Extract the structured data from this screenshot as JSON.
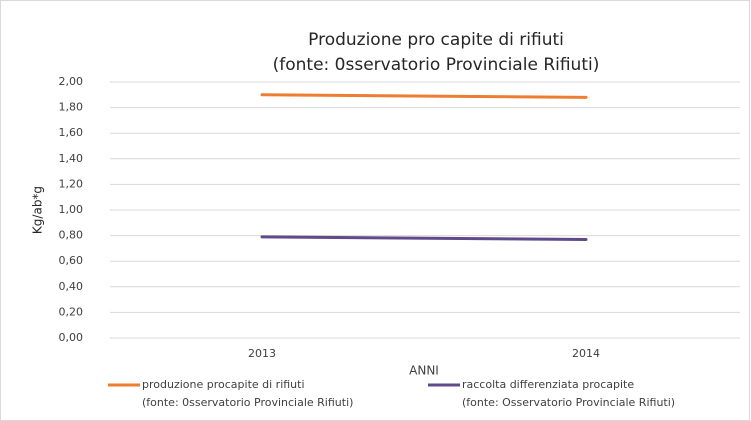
{
  "chart_data": {
    "type": "line",
    "title": "Produzione pro capite di rifiuti",
    "subtitle": "(fonte: 0sservatorio Provinciale Rifiuti)",
    "x_label": "ANNI",
    "y_label": "Kg/ab*g",
    "categories": [
      "2013",
      "2014"
    ],
    "series": [
      {
        "name": "produzione procapite di rifiuti\n(fonte: 0sservatorio Provinciale Rifiuti)",
        "color": "#ed7d31",
        "values": [
          1.9,
          1.88
        ]
      },
      {
        "name": "raccolta differenziata procapite\n(fonte: Osservatorio Provinciale Rifiuti)",
        "color": "#604a8b",
        "values": [
          0.79,
          0.77
        ]
      }
    ],
    "ylim": [
      0,
      2
    ],
    "yticks": [
      {
        "value": 0,
        "label": "0,00"
      },
      {
        "value": 0.2,
        "label": "0,20"
      },
      {
        "value": 0.4,
        "label": "0,40"
      },
      {
        "value": 0.6,
        "label": "0,60"
      },
      {
        "value": 0.8,
        "label": "0,80"
      },
      {
        "value": 1.0,
        "label": "1,00"
      },
      {
        "value": 1.2,
        "label": "1,20"
      },
      {
        "value": 1.4,
        "label": "1,40"
      },
      {
        "value": 1.6,
        "label": "1,60"
      },
      {
        "value": 1.8,
        "label": "1,80"
      },
      {
        "value": 2.0,
        "label": "2,00"
      }
    ],
    "grid": true
  }
}
